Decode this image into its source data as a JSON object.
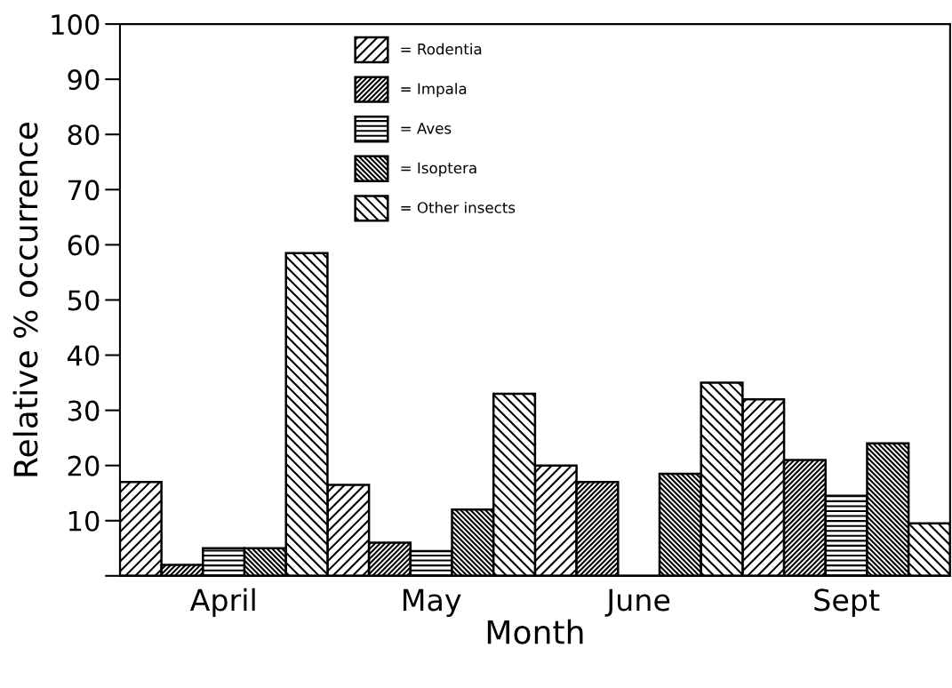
{
  "chart_data": {
    "type": "bar",
    "xlabel": "Month",
    "ylabel": "Relative % occurrence",
    "categories": [
      "April",
      "May",
      "June",
      "Sept"
    ],
    "series": [
      {
        "name": "= Rodentia",
        "color": "#000000",
        "values": [
          17,
          16.5,
          20,
          32
        ]
      },
      {
        "name": "= Impala",
        "color": "#000000",
        "values": [
          2,
          6,
          17,
          21
        ]
      },
      {
        "name": "= Aves",
        "color": "#000000",
        "values": [
          5,
          4.5,
          0,
          14.5
        ]
      },
      {
        "name": "= Isoptera",
        "color": "#000000",
        "values": [
          5,
          12,
          18.5,
          24
        ]
      },
      {
        "name": "= Other insects",
        "color": "#000000",
        "values": [
          58.5,
          33,
          35,
          9.5
        ]
      }
    ],
    "ylim": [
      0,
      100
    ],
    "yticks": [
      {
        "value": 0,
        "label": null
      },
      10,
      20,
      30,
      40,
      50,
      60,
      70,
      80,
      90,
      100
    ],
    "grid": false,
    "legend": "top"
  }
}
